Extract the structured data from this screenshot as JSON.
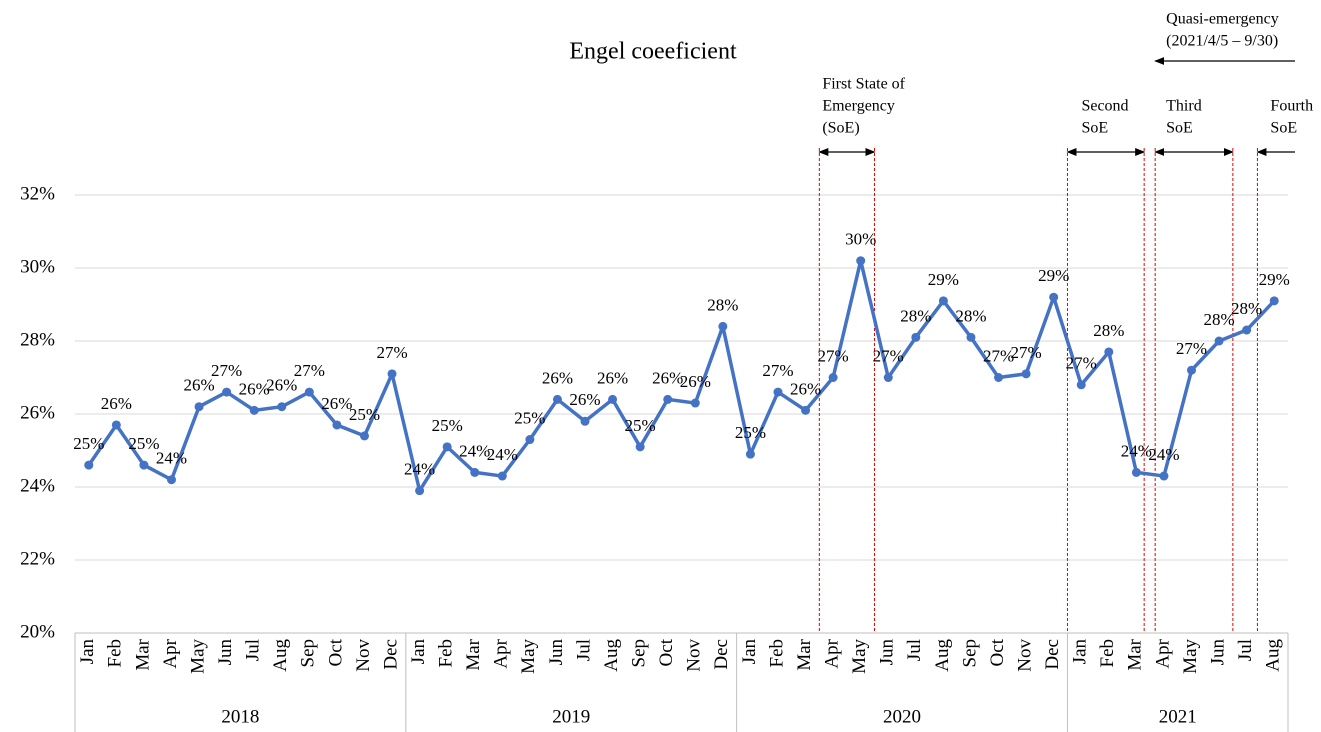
{
  "chart_data": {
    "type": "line",
    "title": "Engel coeeficient",
    "categories": [
      "Jan",
      "Feb",
      "Mar",
      "Apr",
      "May",
      "Jun",
      "Jul",
      "Aug",
      "Sep",
      "Oct",
      "Nov",
      "Dec",
      "Jan",
      "Feb",
      "Mar",
      "Apr",
      "May",
      "Jun",
      "Jul",
      "Aug",
      "Sep",
      "Oct",
      "Nov",
      "Dec",
      "Jan",
      "Feb",
      "Mar",
      "Apr",
      "May",
      "Jun",
      "Jul",
      "Aug",
      "Sep",
      "Oct",
      "Nov",
      "Dec",
      "Jan",
      "Feb",
      "Mar",
      "Apr",
      "May",
      "Jun",
      "Jul",
      "Aug"
    ],
    "years": [
      "2018",
      "2019",
      "2020",
      "2021"
    ],
    "series": [
      {
        "name": "Engel coefficient",
        "color": "#4472c4",
        "values": [
          24.6,
          25.7,
          24.6,
          24.2,
          26.2,
          26.6,
          26.1,
          26.2,
          26.6,
          25.7,
          25.4,
          27.1,
          23.9,
          25.1,
          24.4,
          24.3,
          25.3,
          26.4,
          25.8,
          26.4,
          25.1,
          26.4,
          26.3,
          28.4,
          24.9,
          26.6,
          26.1,
          27.0,
          30.2,
          27.0,
          28.1,
          29.1,
          28.1,
          27.0,
          27.1,
          29.2,
          26.8,
          27.7,
          24.4,
          24.3,
          27.2,
          28.0,
          28.3,
          29.1
        ],
        "value_labels": [
          "25%",
          "26%",
          "25%",
          "24%",
          "26%",
          "27%",
          "26%",
          "26%",
          "27%",
          "26%",
          "25%",
          "27%",
          "24%",
          "25%",
          "24%",
          "24%",
          "25%",
          "26%",
          "26%",
          "26%",
          "25%",
          "26%",
          "26%",
          "28%",
          "25%",
          "27%",
          "26%",
          "27%",
          "30%",
          "27%",
          "28%",
          "29%",
          "28%",
          "27%",
          "27%",
          "29%",
          "27%",
          "28%",
          "24%",
          "24%",
          "27%",
          "28%",
          "28%",
          "29%"
        ]
      }
    ],
    "ylim": [
      20,
      32
    ],
    "yticks": [
      {
        "value": 20,
        "label": "20%"
      },
      {
        "value": 22,
        "label": "22%"
      },
      {
        "value": 24,
        "label": "24%"
      },
      {
        "value": 26,
        "label": "26%"
      },
      {
        "value": 28,
        "label": "28%"
      },
      {
        "value": 30,
        "label": "30%"
      },
      {
        "value": 32,
        "label": "32%"
      }
    ],
    "grid": true,
    "annotations": [
      {
        "text": [
          "First State of",
          "Emergency",
          "(SoE)"
        ]
      },
      {
        "text": [
          "Second",
          "SoE"
        ]
      },
      {
        "text": [
          "Third",
          "SoE"
        ]
      },
      {
        "text": [
          "Fourth",
          "SoE"
        ]
      },
      {
        "text": [
          "Quasi-emergency",
          "(2021/4/5 – 9/30)"
        ]
      }
    ]
  }
}
